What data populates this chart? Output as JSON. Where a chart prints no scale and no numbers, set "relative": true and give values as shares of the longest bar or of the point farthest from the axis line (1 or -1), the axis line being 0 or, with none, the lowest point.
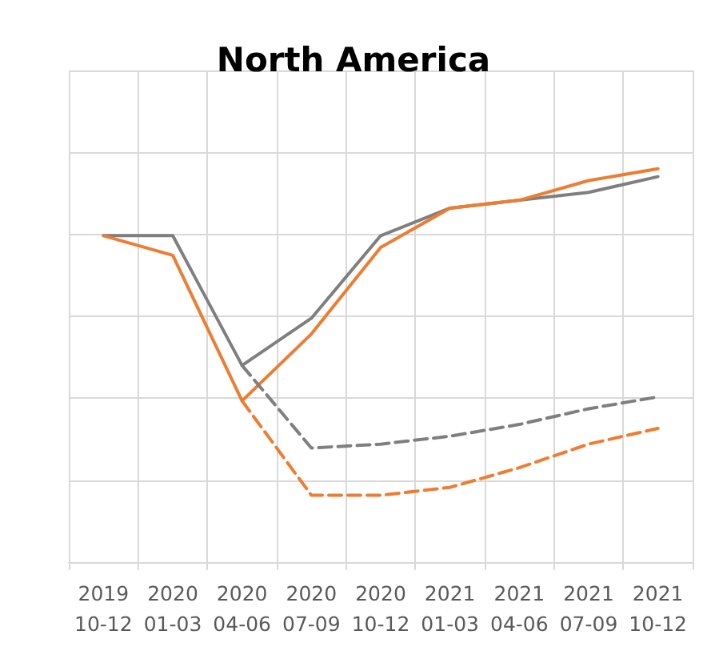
{
  "chart_data": {
    "type": "line",
    "title": "North America",
    "relative": true,
    "grid": true,
    "categories": [
      "2019 10-12",
      "2020 01-03",
      "2020 04-06",
      "2020 07-09",
      "2020 10-12",
      "2021 01-03",
      "2021 04-06",
      "2021 07-09",
      "2021 10-12"
    ],
    "series": [
      {
        "color": "#7f7f7f",
        "line_style": "solid",
        "values": [
          0.83,
          0.83,
          0.5,
          0.62,
          0.83,
          0.9,
          0.92,
          0.94,
          0.98
        ]
      },
      {
        "color": "#ed7d31",
        "line_style": "solid",
        "values": [
          0.83,
          0.78,
          0.41,
          0.58,
          0.8,
          0.9,
          0.92,
          0.97,
          1.0
        ]
      },
      {
        "color": "#7f7f7f",
        "line_style": "dashed",
        "values": [
          null,
          null,
          0.5,
          0.29,
          0.3,
          0.32,
          0.35,
          0.39,
          0.42
        ]
      },
      {
        "color": "#ed7d31",
        "line_style": "dashed",
        "values": [
          null,
          null,
          0.41,
          0.17,
          0.17,
          0.19,
          0.24,
          0.3,
          0.34
        ]
      }
    ]
  }
}
